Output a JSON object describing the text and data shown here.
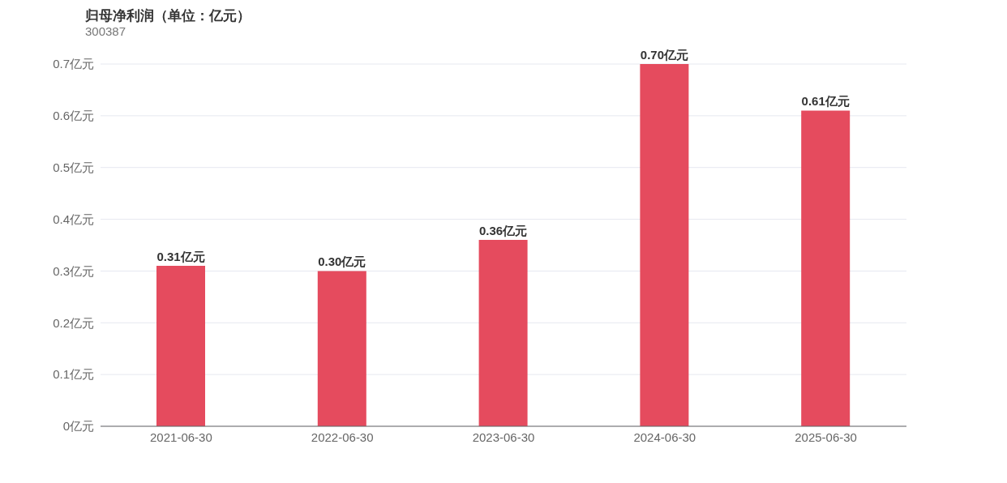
{
  "chart_data": {
    "type": "bar",
    "title": "归母净利润（单位：亿元）",
    "subtitle": "300387",
    "categories": [
      "2021-06-30",
      "2022-06-30",
      "2023-06-30",
      "2024-06-30",
      "2025-06-30"
    ],
    "values": [
      0.31,
      0.3,
      0.36,
      0.7,
      0.61
    ],
    "value_labels": [
      "0.31亿元",
      "0.30亿元",
      "0.36亿元",
      "0.70亿元",
      "0.61亿元"
    ],
    "color": "#e54b5e",
    "ylim": [
      0,
      0.7
    ],
    "yticks": [
      {
        "value": 0,
        "label": "0亿元"
      },
      {
        "value": 0.1,
        "label": "0.1亿元"
      },
      {
        "value": 0.2,
        "label": "0.2亿元"
      },
      {
        "value": 0.3,
        "label": "0.3亿元"
      },
      {
        "value": 0.4,
        "label": "0.4亿元"
      },
      {
        "value": 0.5,
        "label": "0.5亿元"
      },
      {
        "value": 0.6,
        "label": "0.6亿元"
      },
      {
        "value": 0.7,
        "label": "0.7亿元"
      }
    ],
    "grid": "y",
    "legend": false
  }
}
